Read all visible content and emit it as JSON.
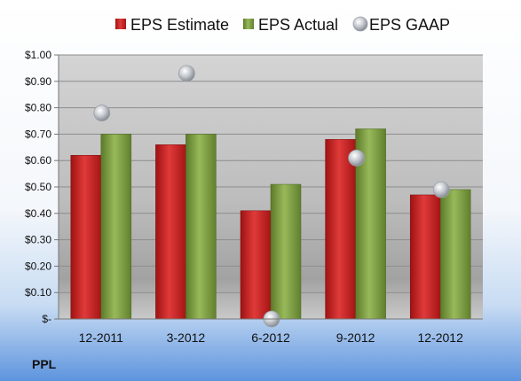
{
  "ticker": "PPL",
  "colors": {
    "estimate": "#cc1f1f",
    "actual": "#7e9e40",
    "gaap": "#b8bcc4"
  },
  "chart_data": {
    "type": "bar",
    "categories": [
      "12-2011",
      "3-2012",
      "6-2012",
      "9-2012",
      "12-2012"
    ],
    "series": [
      {
        "name": "EPS Estimate",
        "kind": "bar",
        "values": [
          0.62,
          0.66,
          0.41,
          0.68,
          0.47
        ]
      },
      {
        "name": "EPS Actual",
        "kind": "bar",
        "values": [
          0.7,
          0.7,
          0.51,
          0.72,
          0.49
        ]
      },
      {
        "name": "EPS GAAP",
        "kind": "marker",
        "values": [
          0.78,
          0.93,
          0.0,
          0.61,
          0.49
        ]
      }
    ],
    "ylim": [
      0,
      1.0
    ],
    "yticks": [
      "$-",
      "$0.10",
      "$0.20",
      "$0.30",
      "$0.40",
      "$0.50",
      "$0.60",
      "$0.70",
      "$0.80",
      "$0.90",
      "$1.00"
    ],
    "grid": true,
    "legend": "top"
  }
}
